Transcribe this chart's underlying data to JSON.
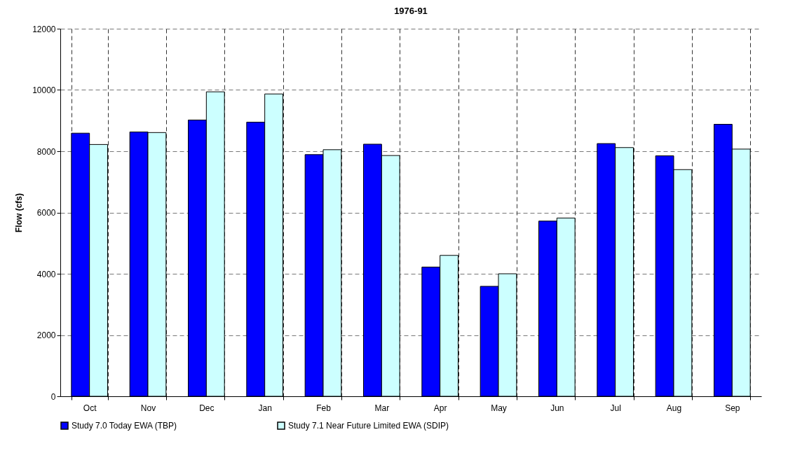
{
  "chart_data": {
    "type": "bar",
    "title": "1976-91",
    "ylabel": "Flow (cfs)",
    "categories": [
      "Oct",
      "Nov",
      "Dec",
      "Jan",
      "Feb",
      "Mar",
      "Apr",
      "May",
      "Jun",
      "Jul",
      "Aug",
      "Sep"
    ],
    "series": [
      {
        "name": "Study 7.0 Today EWA (TBP)",
        "color": "#0000ff",
        "values": [
          8590,
          8630,
          9020,
          8950,
          7890,
          8230,
          4220,
          3590,
          5720,
          8250,
          7850,
          8880
        ]
      },
      {
        "name": "Study 7.1 Near Future Limited EWA (SDIP)",
        "color": "#ccffff",
        "values": [
          8220,
          8610,
          9940,
          9870,
          8050,
          7860,
          4600,
          4000,
          5820,
          8120,
          7400,
          8070
        ]
      }
    ],
    "ylim": [
      0,
      12000
    ],
    "yticks": [
      0,
      2000,
      4000,
      6000,
      8000,
      10000,
      12000
    ],
    "grid": true,
    "legend": "bottom"
  }
}
